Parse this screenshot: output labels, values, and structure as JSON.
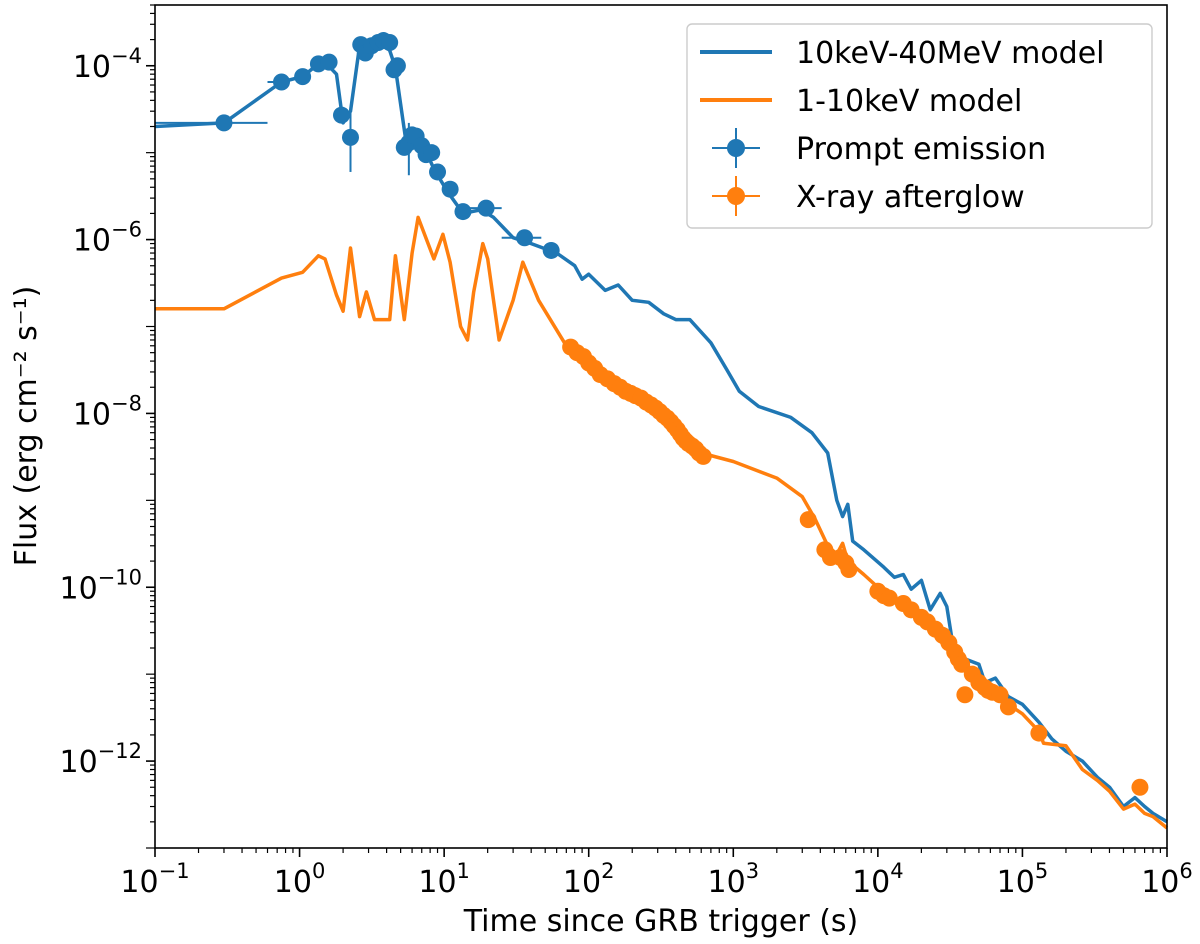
{
  "chart_data": {
    "type": "line+scatter",
    "title": "",
    "xlabel": "Time since GRB trigger (s)",
    "ylabel": "Flux (erg cm⁻² s⁻¹)",
    "xscale": "log",
    "yscale": "log",
    "xlim": [
      0.1,
      1000000
    ],
    "ylim": [
      1e-13,
      0.0005
    ],
    "x_ticks": [
      {
        "base": "10",
        "exp": "−1",
        "value": 0.1
      },
      {
        "base": "10",
        "exp": "0",
        "value": 1
      },
      {
        "base": "10",
        "exp": "1",
        "value": 10
      },
      {
        "base": "10",
        "exp": "2",
        "value": 100
      },
      {
        "base": "10",
        "exp": "3",
        "value": 1000
      },
      {
        "base": "10",
        "exp": "4",
        "value": 10000
      },
      {
        "base": "10",
        "exp": "5",
        "value": 100000
      },
      {
        "base": "10",
        "exp": "6",
        "value": 1000000
      }
    ],
    "y_ticks": [
      {
        "base": "10",
        "exp": "−4",
        "value": 0.0001
      },
      {
        "base": "10",
        "exp": "−6",
        "value": 1e-06
      },
      {
        "base": "10",
        "exp": "−8",
        "value": 1e-08
      },
      {
        "base": "10",
        "exp": "−10",
        "value": 1e-10
      },
      {
        "base": "10",
        "exp": "−12",
        "value": 1e-12
      }
    ],
    "legend": {
      "position": "top-right",
      "entries": [
        {
          "label": "10keV-40MeV model",
          "kind": "line",
          "color": "#1f77b4"
        },
        {
          "label": "1-10keV model",
          "kind": "line",
          "color": "#ff7f0e"
        },
        {
          "label": "Prompt emission",
          "kind": "errorbar",
          "color": "#1f77b4"
        },
        {
          "label": "X-ray afterglow",
          "kind": "errorbar",
          "color": "#ff7f0e"
        }
      ]
    },
    "colors": {
      "blue": "#1f77b4",
      "orange": "#ff7f0e"
    },
    "series": [
      {
        "name": "10keV-40MeV model",
        "kind": "line",
        "color": "#1f77b4",
        "points": [
          [
            0.1,
            2e-05
          ],
          [
            0.3,
            2.2e-05
          ],
          [
            0.75,
            6.5e-05
          ],
          [
            1.05,
            7.5e-05
          ],
          [
            1.35,
            0.000105
          ],
          [
            1.5,
            0.00011
          ],
          [
            1.8,
            8e-05
          ],
          [
            2.0,
            2.2e-05
          ],
          [
            2.25,
            3e-05
          ],
          [
            2.6,
            0.00017
          ],
          [
            2.8,
            0.00014
          ],
          [
            3.1,
            0.00019
          ],
          [
            3.4,
            0.00017
          ],
          [
            3.7,
            0.00018
          ],
          [
            4.2,
            0.00015
          ],
          [
            4.6,
            9.5e-05
          ],
          [
            5.5,
            1.2e-05
          ],
          [
            6.5,
            1.8e-05
          ],
          [
            7.2,
            1.2e-05
          ],
          [
            8.5,
            6.5e-06
          ],
          [
            10.5,
            3.6e-06
          ],
          [
            13.5,
            2e-06
          ],
          [
            18,
            2.2e-06
          ],
          [
            22,
            1.8e-06
          ],
          [
            30,
            1.05e-06
          ],
          [
            40,
            9e-07
          ],
          [
            60,
            7e-07
          ],
          [
            80,
            5e-07
          ],
          [
            90,
            3.5e-07
          ],
          [
            100,
            4e-07
          ],
          [
            130,
            2.6e-07
          ],
          [
            160,
            3e-07
          ],
          [
            200,
            2e-07
          ],
          [
            260,
            1.9e-07
          ],
          [
            330,
            1.4e-07
          ],
          [
            400,
            1.2e-07
          ],
          [
            500,
            1.2e-07
          ],
          [
            700,
            6.5e-08
          ],
          [
            900,
            3.2e-08
          ],
          [
            1100,
            1.8e-08
          ],
          [
            1500,
            1.2e-08
          ],
          [
            2500,
            9e-09
          ],
          [
            3500,
            6e-09
          ],
          [
            4500,
            3.5e-09
          ],
          [
            5200,
            1e-09
          ],
          [
            5700,
            6.5e-10
          ],
          [
            6200,
            9e-10
          ],
          [
            6700,
            3.4e-10
          ],
          [
            8000,
            2.7e-10
          ],
          [
            11000,
            1.7e-10
          ],
          [
            13000,
            1.3e-10
          ],
          [
            15000,
            1.4e-10
          ],
          [
            17000,
            9.5e-11
          ],
          [
            20000,
            1.2e-10
          ],
          [
            23000,
            5.5e-11
          ],
          [
            27000,
            8.5e-11
          ],
          [
            30000,
            6e-11
          ],
          [
            33000,
            2.2e-11
          ],
          [
            40000,
            1.5e-11
          ],
          [
            50000,
            1.3e-11
          ],
          [
            55000,
            8e-12
          ],
          [
            65000,
            9e-12
          ],
          [
            80000,
            5.5e-12
          ],
          [
            100000,
            4.5e-12
          ],
          [
            130000,
            2.8e-12
          ],
          [
            160000,
            1.8e-12
          ],
          [
            200000,
            1.3e-12
          ],
          [
            260000,
            1e-12
          ],
          [
            330000,
            6.5e-13
          ],
          [
            400000,
            5e-13
          ],
          [
            500000,
            3e-13
          ],
          [
            600000,
            3.8e-13
          ],
          [
            700000,
            3e-13
          ],
          [
            800000,
            2.5e-13
          ],
          [
            1000000,
            2e-13
          ]
        ]
      },
      {
        "name": "1-10keV model",
        "kind": "line",
        "color": "#ff7f0e",
        "points": [
          [
            0.1,
            1.6e-07
          ],
          [
            0.3,
            1.6e-07
          ],
          [
            0.75,
            3.6e-07
          ],
          [
            1.05,
            4.2e-07
          ],
          [
            1.35,
            6.5e-07
          ],
          [
            1.5,
            6e-07
          ],
          [
            1.8,
            2.3e-07
          ],
          [
            2.0,
            1.5e-07
          ],
          [
            2.25,
            8e-07
          ],
          [
            2.6,
            1.3e-07
          ],
          [
            2.9,
            2.5e-07
          ],
          [
            3.3,
            1.2e-07
          ],
          [
            4.2,
            1.2e-07
          ],
          [
            4.6,
            6.5e-07
          ],
          [
            5.3,
            1.2e-07
          ],
          [
            6.0,
            7e-07
          ],
          [
            6.6,
            1.8e-06
          ],
          [
            8.5,
            6e-07
          ],
          [
            9.8,
            1.15e-06
          ],
          [
            11,
            5.5e-07
          ],
          [
            13,
            1e-07
          ],
          [
            14.5,
            7e-08
          ],
          [
            16,
            2.5e-07
          ],
          [
            18.5,
            9e-07
          ],
          [
            20,
            6e-07
          ],
          [
            24,
            7e-08
          ],
          [
            30,
            2e-07
          ],
          [
            35,
            5.5e-07
          ],
          [
            45,
            2e-07
          ],
          [
            70,
            6e-08
          ],
          [
            100,
            3.5e-08
          ],
          [
            200,
            1.6e-08
          ],
          [
            400,
            6e-09
          ],
          [
            600,
            3.5e-09
          ],
          [
            1000,
            2.8e-09
          ],
          [
            2000,
            1.8e-09
          ],
          [
            3000,
            1.1e-09
          ],
          [
            3700,
            6e-10
          ],
          [
            4500,
            3e-10
          ],
          [
            5200,
            2.4e-10
          ],
          [
            5700,
            3.2e-10
          ],
          [
            6200,
            2e-10
          ],
          [
            6700,
            1.8e-10
          ],
          [
            8000,
            1.4e-10
          ],
          [
            10000,
            1e-10
          ],
          [
            14000,
            7e-11
          ],
          [
            20000,
            4e-11
          ],
          [
            30000,
            2e-11
          ],
          [
            40000,
            1.3e-11
          ],
          [
            50000,
            1e-11
          ],
          [
            60000,
            7e-12
          ],
          [
            80000,
            4.5e-12
          ],
          [
            100000,
            3.5e-12
          ],
          [
            130000,
            2.2e-12
          ],
          [
            140000,
            1.6e-12
          ],
          [
            200000,
            1.5e-12
          ],
          [
            260000,
            8e-13
          ],
          [
            330000,
            6e-13
          ],
          [
            400000,
            4.5e-13
          ],
          [
            500000,
            2.8e-13
          ],
          [
            600000,
            3.2e-13
          ],
          [
            700000,
            2.5e-13
          ],
          [
            800000,
            2.3e-13
          ],
          [
            1000000,
            1.7e-13
          ]
        ]
      },
      {
        "name": "Prompt emission",
        "kind": "errorbar",
        "color": "#1f77b4",
        "points": [
          {
            "x": 0.3,
            "y": 2.2e-05,
            "xlo": 0.1,
            "xhi": 0.6
          },
          {
            "x": 0.75,
            "y": 6.5e-05,
            "xlo": 0.6,
            "xhi": 0.85
          },
          {
            "x": 1.05,
            "y": 7.5e-05
          },
          {
            "x": 1.35,
            "y": 0.000105
          },
          {
            "x": 1.6,
            "y": 0.00011
          },
          {
            "x": 1.95,
            "y": 2.7e-05
          },
          {
            "x": 2.25,
            "y": 1.5e-05,
            "ylo": 6e-06,
            "yhi": 3e-05
          },
          {
            "x": 2.65,
            "y": 0.000175
          },
          {
            "x": 2.85,
            "y": 0.00014
          },
          {
            "x": 3.15,
            "y": 0.00017
          },
          {
            "x": 3.5,
            "y": 0.000185
          },
          {
            "x": 3.8,
            "y": 0.000195
          },
          {
            "x": 4.2,
            "y": 0.000185
          },
          {
            "x": 4.5,
            "y": 9e-05
          },
          {
            "x": 4.75,
            "y": 0.0001
          },
          {
            "x": 5.3,
            "y": 1.15e-05
          },
          {
            "x": 5.7,
            "y": 1.3e-05,
            "ylo": 5.5e-06,
            "yhi": 2.2e-05
          },
          {
            "x": 6.0,
            "y": 1.6e-05
          },
          {
            "x": 6.4,
            "y": 1.55e-05
          },
          {
            "x": 7.0,
            "y": 1.2e-05
          },
          {
            "x": 7.5,
            "y": 9.5e-06
          },
          {
            "x": 8.2,
            "y": 1e-05
          },
          {
            "x": 9.0,
            "y": 6e-06
          },
          {
            "x": 11,
            "y": 3.8e-06
          },
          {
            "x": 13.5,
            "y": 2.1e-06
          },
          {
            "x": 19.5,
            "y": 2.3e-06,
            "xlo": 15,
            "xhi": 25
          },
          {
            "x": 36,
            "y": 1.05e-06,
            "xlo": 25,
            "xhi": 47
          },
          {
            "x": 55,
            "y": 7.5e-07
          }
        ]
      },
      {
        "name": "X-ray afterglow",
        "kind": "errorbar",
        "color": "#ff7f0e",
        "points": [
          {
            "x": 75,
            "y": 5.8e-08
          },
          {
            "x": 83,
            "y": 5e-08
          },
          {
            "x": 92,
            "y": 4.5e-08
          },
          {
            "x": 100,
            "y": 3.8e-08
          },
          {
            "x": 110,
            "y": 3.3e-08
          },
          {
            "x": 120,
            "y": 2.8e-08
          },
          {
            "x": 135,
            "y": 2.5e-08
          },
          {
            "x": 150,
            "y": 2.2e-08
          },
          {
            "x": 165,
            "y": 2e-08
          },
          {
            "x": 180,
            "y": 1.8e-08
          },
          {
            "x": 195,
            "y": 1.7e-08
          },
          {
            "x": 210,
            "y": 1.6e-08
          },
          {
            "x": 230,
            "y": 1.5e-08
          },
          {
            "x": 250,
            "y": 1.35e-08
          },
          {
            "x": 270,
            "y": 1.25e-08
          },
          {
            "x": 290,
            "y": 1.15e-08
          },
          {
            "x": 310,
            "y": 1.05e-08
          },
          {
            "x": 330,
            "y": 9.5e-09
          },
          {
            "x": 350,
            "y": 8.8e-09
          },
          {
            "x": 370,
            "y": 8e-09
          },
          {
            "x": 390,
            "y": 7.2e-09
          },
          {
            "x": 410,
            "y": 6.5e-09
          },
          {
            "x": 430,
            "y": 5.8e-09
          },
          {
            "x": 450,
            "y": 5.2e-09
          },
          {
            "x": 470,
            "y": 4.8e-09
          },
          {
            "x": 490,
            "y": 4.5e-09
          },
          {
            "x": 520,
            "y": 4.2e-09
          },
          {
            "x": 550,
            "y": 3.9e-09
          },
          {
            "x": 580,
            "y": 3.5e-09
          },
          {
            "x": 620,
            "y": 3.2e-09
          },
          {
            "x": 3300,
            "y": 6e-10
          },
          {
            "x": 4300,
            "y": 2.7e-10
          },
          {
            "x": 4700,
            "y": 2.2e-10
          },
          {
            "x": 5500,
            "y": 2.2e-10
          },
          {
            "x": 6000,
            "y": 1.9e-10
          },
          {
            "x": 6300,
            "y": 1.6e-10
          },
          {
            "x": 10000,
            "y": 9e-11
          },
          {
            "x": 11000,
            "y": 8e-11
          },
          {
            "x": 12000,
            "y": 7.5e-11
          },
          {
            "x": 15000,
            "y": 6.5e-11
          },
          {
            "x": 17000,
            "y": 5.5e-11
          },
          {
            "x": 20000,
            "y": 4.5e-11
          },
          {
            "x": 22000,
            "y": 4e-11
          },
          {
            "x": 25000,
            "y": 3.3e-11
          },
          {
            "x": 28000,
            "y": 2.8e-11
          },
          {
            "x": 31000,
            "y": 2.3e-11
          },
          {
            "x": 34000,
            "y": 1.8e-11
          },
          {
            "x": 36000,
            "y": 1.5e-11
          },
          {
            "x": 38000,
            "y": 1.3e-11
          },
          {
            "x": 40000,
            "y": 5.8e-12
          },
          {
            "x": 45000,
            "y": 1e-11
          },
          {
            "x": 50000,
            "y": 8e-12
          },
          {
            "x": 55000,
            "y": 7e-12
          },
          {
            "x": 58000,
            "y": 6.5e-12
          },
          {
            "x": 62000,
            "y": 6.2e-12
          },
          {
            "x": 70000,
            "y": 5.8e-12
          },
          {
            "x": 80000,
            "y": 4.2e-12
          },
          {
            "x": 130000,
            "y": 2.1e-12
          },
          {
            "x": 650000,
            "y": 5e-13,
            "ylo": 4.5e-13,
            "yhi": 6e-13
          }
        ]
      }
    ]
  }
}
